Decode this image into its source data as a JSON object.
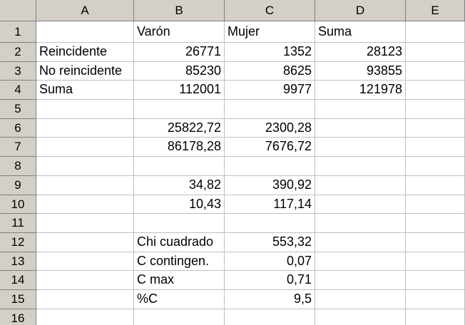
{
  "columns": [
    "A",
    "B",
    "C",
    "D",
    "E"
  ],
  "rows": [
    {
      "num": "1",
      "cells": [
        "",
        "Varón",
        "Mujer",
        "Suma",
        ""
      ]
    },
    {
      "num": "2",
      "cells": [
        "Reincidente",
        "26771",
        "1352",
        "28123",
        ""
      ]
    },
    {
      "num": "3",
      "cells": [
        "No reincidente",
        "85230",
        "8625",
        "93855",
        ""
      ]
    },
    {
      "num": "4",
      "cells": [
        "Suma",
        "112001",
        "9977",
        "121978",
        ""
      ]
    },
    {
      "num": "5",
      "cells": [
        "",
        "",
        "",
        "",
        ""
      ]
    },
    {
      "num": "6",
      "cells": [
        "",
        "25822,72",
        "2300,28",
        "",
        ""
      ]
    },
    {
      "num": "7",
      "cells": [
        "",
        "86178,28",
        "7676,72",
        "",
        ""
      ]
    },
    {
      "num": "8",
      "cells": [
        "",
        "",
        "",
        "",
        ""
      ]
    },
    {
      "num": "9",
      "cells": [
        "",
        "34,82",
        "390,92",
        "",
        ""
      ]
    },
    {
      "num": "10",
      "cells": [
        "",
        "10,43",
        "117,14",
        "",
        ""
      ]
    },
    {
      "num": "11",
      "cells": [
        "",
        "",
        "",
        "",
        ""
      ]
    },
    {
      "num": "12",
      "cells": [
        "",
        "Chi cuadrado",
        "553,32",
        "",
        ""
      ]
    },
    {
      "num": "13",
      "cells": [
        "",
        "C contingen.",
        "0,07",
        "",
        ""
      ]
    },
    {
      "num": "14",
      "cells": [
        "",
        "C max",
        "0,71",
        "",
        ""
      ]
    },
    {
      "num": "15",
      "cells": [
        "",
        "%C",
        "9,5",
        "",
        ""
      ]
    },
    {
      "num": "16",
      "cells": [
        "",
        "",
        "",
        "",
        ""
      ]
    }
  ]
}
